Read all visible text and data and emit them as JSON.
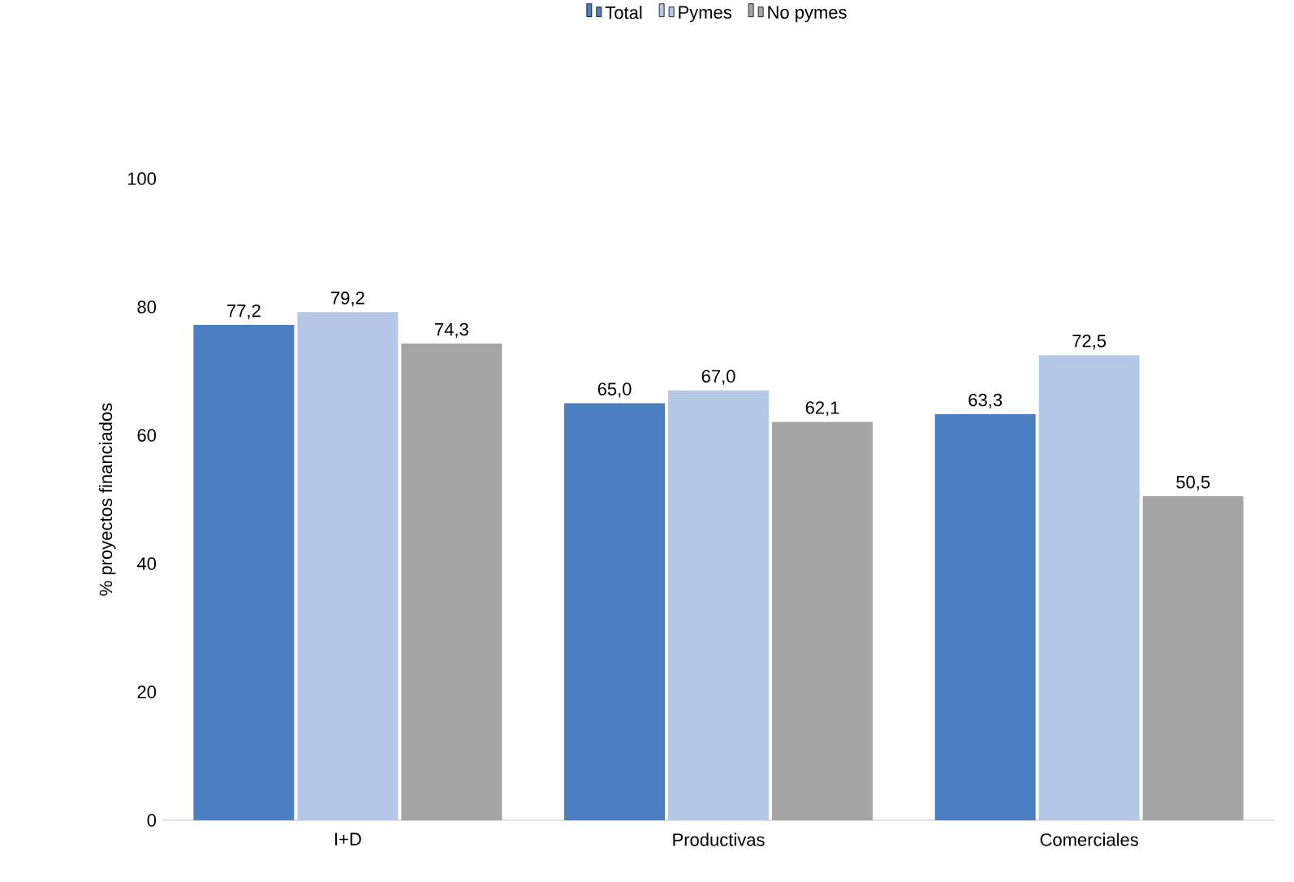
{
  "chart_data": {
    "type": "bar",
    "ylabel": "% proyectos financiados",
    "categories": [
      "I+D",
      "Productivas",
      "Comerciales"
    ],
    "series": [
      {
        "name": "Total",
        "color": "#4a7fc1",
        "values": [
          77.2,
          65.0,
          63.3
        ],
        "value_labels": [
          "77,2",
          "65,0",
          "63,3"
        ]
      },
      {
        "name": "Pymes",
        "color": "#b4c7e7",
        "values": [
          79.2,
          67.0,
          72.5
        ],
        "value_labels": [
          "79,2",
          "67,0",
          "72,5"
        ]
      },
      {
        "name": "No pymes",
        "color": "#a5a5a5",
        "values": [
          74.3,
          62.1,
          50.5
        ],
        "value_labels": [
          "74,3",
          "62,1",
          "50,5"
        ]
      }
    ],
    "ylim": [
      0,
      100
    ],
    "yticks": [
      0,
      20,
      40,
      60,
      80,
      100
    ],
    "grid": false,
    "legend": "top"
  }
}
